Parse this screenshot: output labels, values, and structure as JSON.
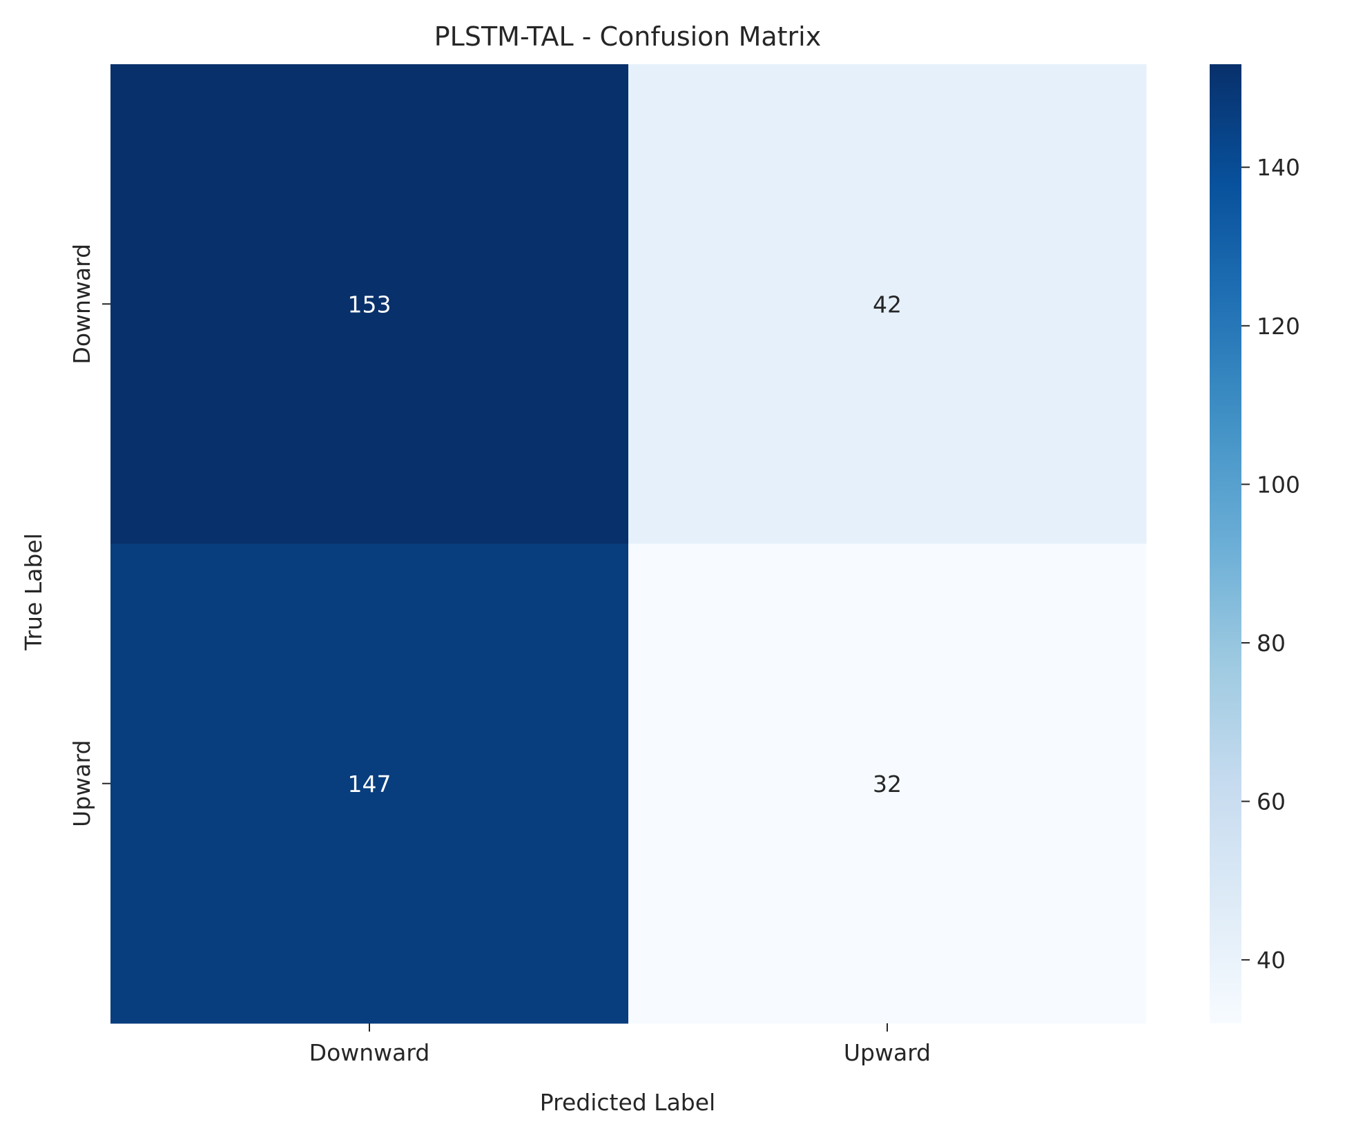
{
  "chart_data": {
    "type": "heatmap",
    "title": "PLSTM-TAL - Confusion Matrix",
    "xlabel": "Predicted Label",
    "ylabel": "True Label",
    "x_categories": [
      "Downward",
      "Upward"
    ],
    "y_categories": [
      "Downward",
      "Upward"
    ],
    "values": [
      [
        153,
        42
      ],
      [
        147,
        32
      ]
    ],
    "colormap": "Blues",
    "colorbar": {
      "vmin": 32,
      "vmax": 153,
      "ticks": [
        40,
        60,
        80,
        100,
        120,
        140
      ],
      "tick_labels": [
        "40",
        "60",
        "80",
        "100",
        "120",
        "140"
      ]
    },
    "grid": false,
    "legend": "colorbar-right"
  }
}
